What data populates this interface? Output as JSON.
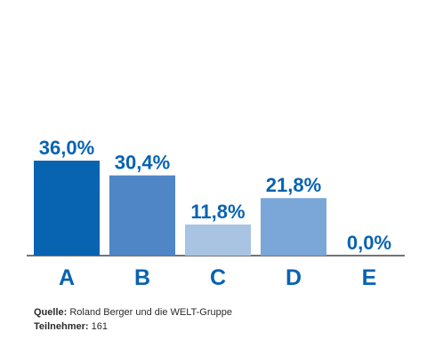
{
  "chart_data": {
    "type": "bar",
    "categories": [
      "A",
      "B",
      "C",
      "D",
      "E"
    ],
    "values": [
      36.0,
      30.4,
      11.8,
      21.8,
      0.0
    ],
    "value_labels": [
      "36,0%",
      "30,4%",
      "11,8%",
      "21,8%",
      "0,0%"
    ],
    "bar_colors": [
      "#0863b0",
      "#4f86c6",
      "#a8c4e2",
      "#7aa6d8",
      "#ffffff"
    ],
    "label_color": "#0863b0",
    "axis_color": "#222222",
    "ylim": [
      0,
      36
    ],
    "grid": false
  },
  "footer": {
    "source_key": "Quelle:",
    "source_value": "Roland Berger und die WELT-Gruppe",
    "participants_key": "Teilnehmer:",
    "participants_value": "161"
  }
}
